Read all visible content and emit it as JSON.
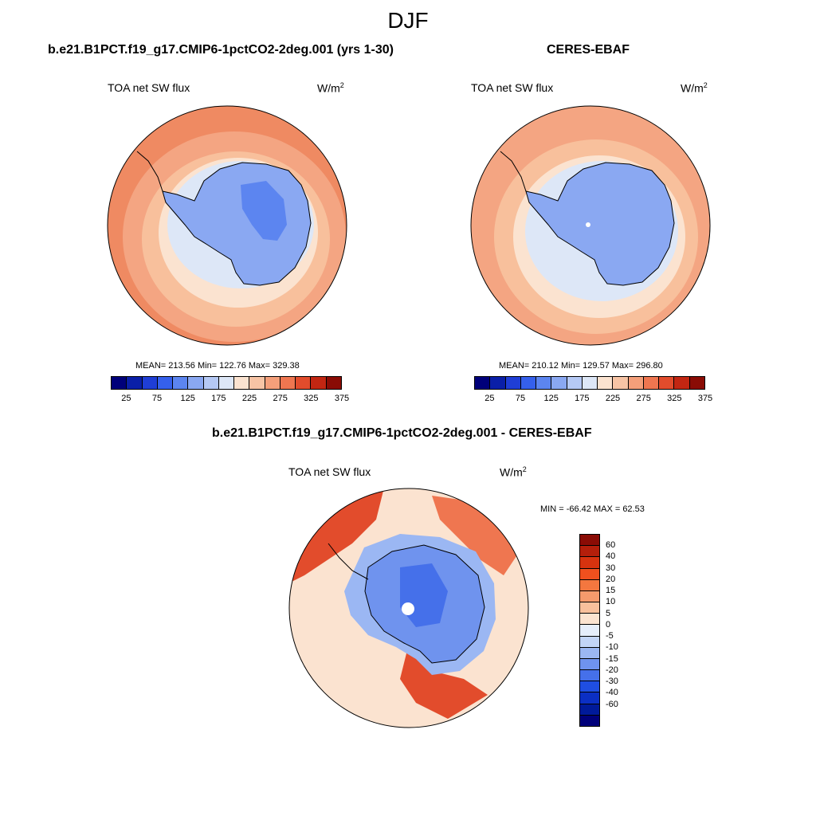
{
  "figure": {
    "title": "DJF"
  },
  "panels": [
    {
      "title": "b.e21.B1PCT.f19_g17.CMIP6-1pctCO2-2deg.001 (yrs 1-30)",
      "variable": "TOA net SW flux",
      "unit_base": "W/m",
      "unit_exp": "2",
      "stats": "MEAN= 213.56  Min= 122.76  Max= 329.38"
    },
    {
      "title": "CERES-EBAF",
      "variable": "TOA net SW flux",
      "unit_base": "W/m",
      "unit_exp": "2",
      "stats": "MEAN= 210.12  Min= 129.57  Max= 296.80"
    },
    {
      "title": "b.e21.B1PCT.f19_g17.CMIP6-1pctCO2-2deg.001 - CERES-EBAF",
      "variable": "TOA net SW flux",
      "unit_base": "W/m",
      "unit_exp": "2",
      "stats": "MIN = -66.42 MAX =  62.53"
    }
  ],
  "colorbars": {
    "absolute": {
      "colors": [
        "#00007a",
        "#0a1fa8",
        "#1f3ed6",
        "#3560ec",
        "#5c85f0",
        "#8aa8f2",
        "#b5c9f5",
        "#dde7f7",
        "#fbe3d0",
        "#f7c4a5",
        "#f49f7a",
        "#ef7650",
        "#e24c2c",
        "#c22612",
        "#8a0c05"
      ],
      "ticks": [
        "25",
        "75",
        "125",
        "175",
        "225",
        "275",
        "325",
        "375"
      ]
    },
    "difference": {
      "colors": [
        "#8a0c05",
        "#b41f0b",
        "#d7330f",
        "#f0501e",
        "#f4773f",
        "#f59a6c",
        "#f8c09c",
        "#fbe3d0",
        "#e6eefb",
        "#c3d5f7",
        "#9bb7f3",
        "#6f93ee",
        "#4570ea",
        "#1f4ee2",
        "#0b2fc4",
        "#001a9a",
        "#00007a"
      ],
      "ticks": [
        "60",
        "40",
        "30",
        "20",
        "15",
        "10",
        "5",
        "0",
        "-5",
        "-10",
        "-15",
        "-20",
        "-30",
        "-40",
        "-60"
      ]
    }
  },
  "chart_data": [
    {
      "type": "heatmap",
      "projection": "south-polar-stereographic",
      "title": "b.e21.B1PCT.f19_g17.CMIP6-1pctCO2-2deg.001 (yrs 1-30)",
      "variable": "TOA net SW flux",
      "units": "W/m2",
      "mean": 213.56,
      "min": 122.76,
      "max": 329.38,
      "levels": [
        25,
        50,
        75,
        100,
        125,
        150,
        175,
        200,
        225,
        250,
        275,
        300,
        325,
        350,
        375
      ]
    },
    {
      "type": "heatmap",
      "projection": "south-polar-stereographic",
      "title": "CERES-EBAF",
      "variable": "TOA net SW flux",
      "units": "W/m2",
      "mean": 210.12,
      "min": 129.57,
      "max": 296.8,
      "levels": [
        25,
        50,
        75,
        100,
        125,
        150,
        175,
        200,
        225,
        250,
        275,
        300,
        325,
        350,
        375
      ]
    },
    {
      "type": "heatmap",
      "projection": "south-polar-stereographic",
      "title": "b.e21.B1PCT.f19_g17.CMIP6-1pctCO2-2deg.001 - CERES-EBAF",
      "variable": "TOA net SW flux",
      "units": "W/m2",
      "min": -66.42,
      "max": 62.53,
      "levels": [
        60,
        40,
        30,
        20,
        15,
        10,
        5,
        0,
        -5,
        -10,
        -15,
        -20,
        -30,
        -40,
        -60
      ]
    }
  ]
}
